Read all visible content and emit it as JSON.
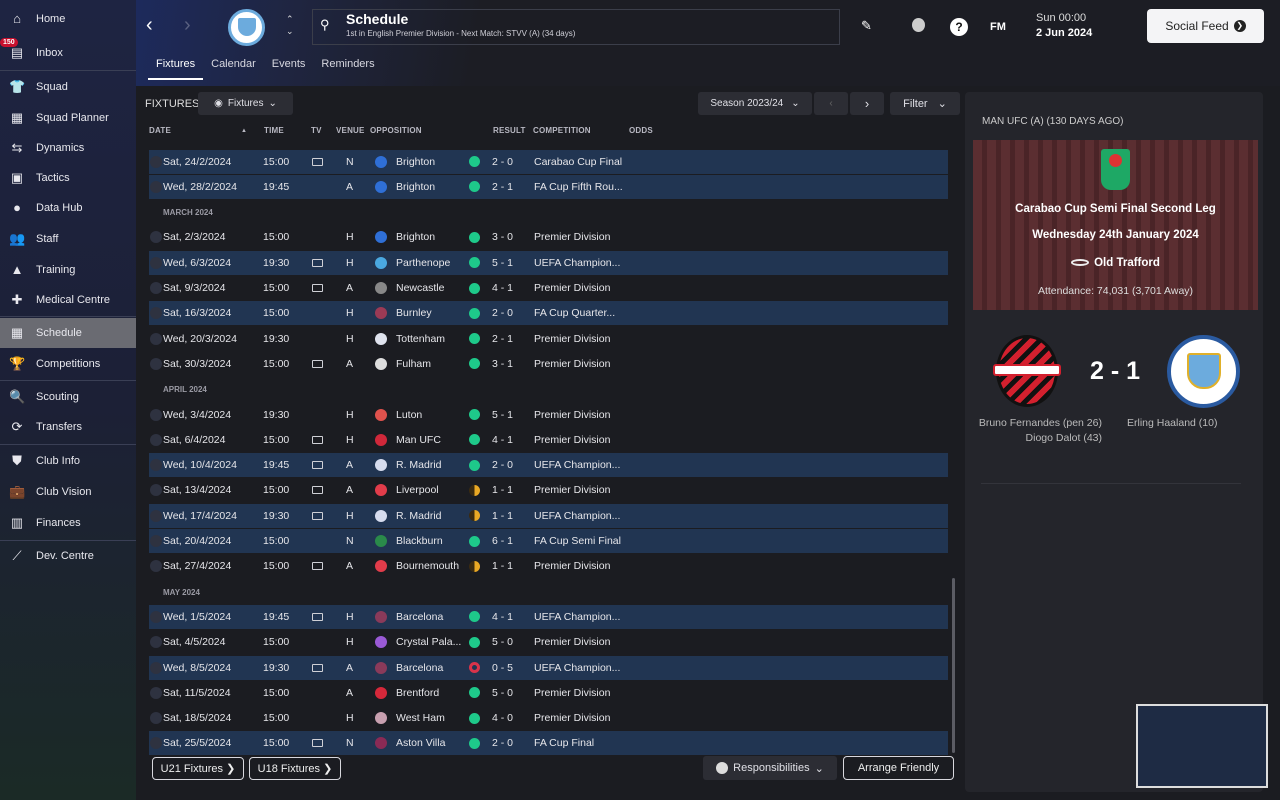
{
  "sidebar": {
    "inbox_badge": "150",
    "items": [
      {
        "label": "Home",
        "icon": "home-icon",
        "glyph": "⌂"
      },
      {
        "label": "Inbox",
        "icon": "inbox-icon",
        "glyph": "▤"
      },
      {
        "label": "Squad",
        "icon": "shirt-icon",
        "glyph": "👕"
      },
      {
        "label": "Squad Planner",
        "icon": "clipboard-icon",
        "glyph": "▦"
      },
      {
        "label": "Dynamics",
        "icon": "dynamics-icon",
        "glyph": "⇆"
      },
      {
        "label": "Tactics",
        "icon": "tactics-icon",
        "glyph": "▣"
      },
      {
        "label": "Data Hub",
        "icon": "data-hub-icon",
        "glyph": "●"
      },
      {
        "label": "Staff",
        "icon": "staff-icon",
        "glyph": "👥"
      },
      {
        "label": "Training",
        "icon": "training-icon",
        "glyph": "▲"
      },
      {
        "label": "Medical Centre",
        "icon": "medical-icon",
        "glyph": "✚"
      },
      {
        "label": "Schedule",
        "icon": "calendar-icon",
        "glyph": "▦"
      },
      {
        "label": "Competitions",
        "icon": "trophy-icon",
        "glyph": "🏆"
      },
      {
        "label": "Scouting",
        "icon": "search-icon",
        "glyph": "🔍"
      },
      {
        "label": "Transfers",
        "icon": "transfers-icon",
        "glyph": "⟳"
      },
      {
        "label": "Club Info",
        "icon": "shield-icon",
        "glyph": "⛊"
      },
      {
        "label": "Club Vision",
        "icon": "briefcase-icon",
        "glyph": "💼"
      },
      {
        "label": "Finances",
        "icon": "money-icon",
        "glyph": "▥"
      },
      {
        "label": "Dev. Centre",
        "icon": "dev-centre-icon",
        "glyph": "⟋"
      }
    ],
    "active": "Schedule"
  },
  "header": {
    "title": "Schedule",
    "subtitle": "1st in English Premier Division - Next Match: STVV (A) (34 days)",
    "time": "Sun 00:00",
    "date": "2 Jun 2024",
    "social_feed": "Social Feed",
    "fm": "FM"
  },
  "tabs": [
    "Fixtures",
    "Calendar",
    "Events",
    "Reminders"
  ],
  "toolbar": {
    "label": "FIXTURES",
    "view": "Fixtures",
    "season": "Season 2023/24",
    "filter": "Filter"
  },
  "columns": [
    "DATE",
    "TIME",
    "TV",
    "VENUE",
    "OPPOSITION",
    "RESULT",
    "COMPETITION",
    "ODDS"
  ],
  "colors": {
    "win": "#1ec98a",
    "draw": "#e9a825",
    "loss": "#d9334a",
    "highlight": "#213552"
  },
  "fixtures": [
    {
      "date": "Sat, 24/2/2024",
      "time": "15:00",
      "tv": true,
      "venue": "N",
      "opp": "Brighton",
      "crest": "#2f6fd6",
      "res": "win",
      "score": "2 - 0",
      "comp": "Carabao Cup Final",
      "hl": true
    },
    {
      "date": "Wed, 28/2/2024",
      "time": "19:45",
      "tv": false,
      "venue": "A",
      "opp": "Brighton",
      "crest": "#2f6fd6",
      "res": "win",
      "score": "2 - 1",
      "comp": "FA Cup Fifth Rou...",
      "hl": true
    },
    {
      "month": "MARCH 2024"
    },
    {
      "date": "Sat, 2/3/2024",
      "time": "15:00",
      "tv": false,
      "venue": "H",
      "opp": "Brighton",
      "crest": "#2f6fd6",
      "res": "win",
      "score": "3 - 0",
      "comp": "Premier Division",
      "hl": false
    },
    {
      "date": "Wed, 6/3/2024",
      "time": "19:30",
      "tv": true,
      "venue": "H",
      "opp": "Parthenope",
      "crest": "#4aa8e0",
      "res": "win",
      "score": "5 - 1",
      "comp": "UEFA Champion...",
      "hl": true
    },
    {
      "date": "Sat, 9/3/2024",
      "time": "15:00",
      "tv": true,
      "venue": "A",
      "opp": "Newcastle",
      "crest": "#888",
      "res": "win",
      "score": "4 - 1",
      "comp": "Premier Division",
      "hl": false
    },
    {
      "date": "Sat, 16/3/2024",
      "time": "15:00",
      "tv": false,
      "venue": "H",
      "opp": "Burnley",
      "crest": "#9b3a55",
      "res": "win",
      "score": "2 - 0",
      "comp": "FA Cup Quarter...",
      "hl": true
    },
    {
      "date": "Wed, 20/3/2024",
      "time": "19:30",
      "tv": false,
      "venue": "H",
      "opp": "Tottenham",
      "crest": "#dfe3ee",
      "res": "win",
      "score": "2 - 1",
      "comp": "Premier Division",
      "hl": false
    },
    {
      "date": "Sat, 30/3/2024",
      "time": "15:00",
      "tv": true,
      "venue": "A",
      "opp": "Fulham",
      "crest": "#ddd",
      "res": "win",
      "score": "3 - 1",
      "comp": "Premier Division",
      "hl": false
    },
    {
      "month": "APRIL 2024"
    },
    {
      "date": "Wed, 3/4/2024",
      "time": "19:30",
      "tv": false,
      "venue": "H",
      "opp": "Luton",
      "crest": "#e0524d",
      "res": "win",
      "score": "5 - 1",
      "comp": "Premier Division",
      "hl": false
    },
    {
      "date": "Sat, 6/4/2024",
      "time": "15:00",
      "tv": true,
      "venue": "H",
      "opp": "Man UFC",
      "crest": "#d0283a",
      "res": "win",
      "score": "4 - 1",
      "comp": "Premier Division",
      "hl": false
    },
    {
      "date": "Wed, 10/4/2024",
      "time": "19:45",
      "tv": true,
      "venue": "A",
      "opp": "R. Madrid",
      "crest": "#d6dcee",
      "res": "win",
      "score": "2 - 0",
      "comp": "UEFA Champion...",
      "hl": true
    },
    {
      "date": "Sat, 13/4/2024",
      "time": "15:00",
      "tv": true,
      "venue": "A",
      "opp": "Liverpool",
      "crest": "#e23c4a",
      "res": "draw",
      "score": "1 - 1",
      "comp": "Premier Division",
      "hl": false
    },
    {
      "date": "Wed, 17/4/2024",
      "time": "19:30",
      "tv": true,
      "venue": "H",
      "opp": "R. Madrid",
      "crest": "#d6dcee",
      "res": "draw",
      "score": "1 - 1",
      "comp": "UEFA Champion...",
      "hl": true
    },
    {
      "date": "Sat, 20/4/2024",
      "time": "15:00",
      "tv": false,
      "venue": "N",
      "opp": "Blackburn",
      "crest": "#2a8a4a",
      "res": "win",
      "score": "6 - 1",
      "comp": "FA Cup Semi Final",
      "hl": true
    },
    {
      "date": "Sat, 27/4/2024",
      "time": "15:00",
      "tv": true,
      "venue": "A",
      "opp": "Bournemouth",
      "crest": "#e23c4a",
      "res": "draw",
      "score": "1 - 1",
      "comp": "Premier Division",
      "hl": false
    },
    {
      "month": "MAY 2024"
    },
    {
      "date": "Wed, 1/5/2024",
      "time": "19:45",
      "tv": true,
      "venue": "H",
      "opp": "Barcelona",
      "crest": "#8a3a5a",
      "res": "win",
      "score": "4 - 1",
      "comp": "UEFA Champion...",
      "hl": true
    },
    {
      "date": "Sat, 4/5/2024",
      "time": "15:00",
      "tv": false,
      "venue": "H",
      "opp": "Crystal Pala...",
      "crest": "#9a5ad6",
      "res": "win",
      "score": "5 - 0",
      "comp": "Premier Division",
      "hl": false
    },
    {
      "date": "Wed, 8/5/2024",
      "time": "19:30",
      "tv": true,
      "venue": "A",
      "opp": "Barcelona",
      "crest": "#8a3a5a",
      "res": "loss",
      "score": "0 - 5",
      "comp": "UEFA Champion...",
      "hl": true
    },
    {
      "date": "Sat, 11/5/2024",
      "time": "15:00",
      "tv": false,
      "venue": "A",
      "opp": "Brentford",
      "crest": "#d6283a",
      "res": "win",
      "score": "5 - 0",
      "comp": "Premier Division",
      "hl": false
    },
    {
      "date": "Sat, 18/5/2024",
      "time": "15:00",
      "tv": false,
      "venue": "H",
      "opp": "West Ham",
      "crest": "#c8a0b0",
      "res": "win",
      "score": "4 - 0",
      "comp": "Premier Division",
      "hl": false
    },
    {
      "date": "Sat, 25/5/2024",
      "time": "15:00",
      "tv": true,
      "venue": "N",
      "opp": "Aston Villa",
      "crest": "#8a2a55",
      "res": "win",
      "score": "2 - 0",
      "comp": "FA Cup Final",
      "hl": true
    }
  ],
  "footer": {
    "u21": "U21 Fixtures ❯",
    "u18": "U18 Fixtures ❯",
    "responsibilities": "Responsibilities",
    "arrange": "Arrange Friendly"
  },
  "match": {
    "heading": "MAN UFC (A) (130 DAYS AGO)",
    "competition": "Carabao Cup Semi Final Second Leg",
    "date": "Wednesday 24th January 2024",
    "stadium": "Old Trafford",
    "attendance": "Attendance: 74,031 (3,701 Away)",
    "score": "2 - 1",
    "home_scorers": [
      "Bruno Fernandes (pen 26)",
      "Diogo Dalot (43)"
    ],
    "away_scorers": [
      "Erling Haaland (10)"
    ]
  }
}
